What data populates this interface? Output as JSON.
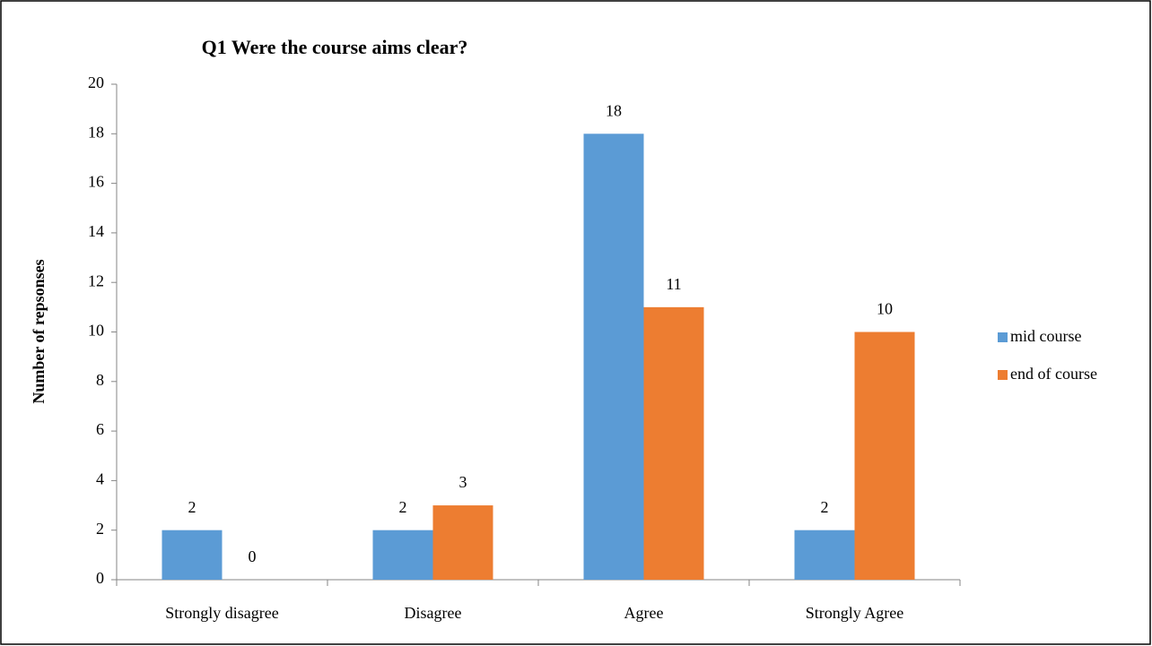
{
  "chart_data": {
    "type": "bar",
    "title": "Q1 Were the course aims clear?",
    "y_label": "Number of repsonses",
    "categories": [
      "Strongly  disagree",
      "Disagree",
      "Agree",
      "Strongly Agree"
    ],
    "series": [
      {
        "name": "mid course",
        "color": "#5b9bd5",
        "values": [
          2,
          2,
          18,
          2
        ]
      },
      {
        "name": "end of course",
        "color": "#ed7d31",
        "values": [
          0,
          3,
          11,
          10
        ]
      }
    ],
    "ylim": [
      0,
      20
    ],
    "yticks": [
      0,
      2,
      4,
      6,
      8,
      10,
      12,
      14,
      16,
      18,
      20
    ],
    "grid": false,
    "legend": "right"
  }
}
